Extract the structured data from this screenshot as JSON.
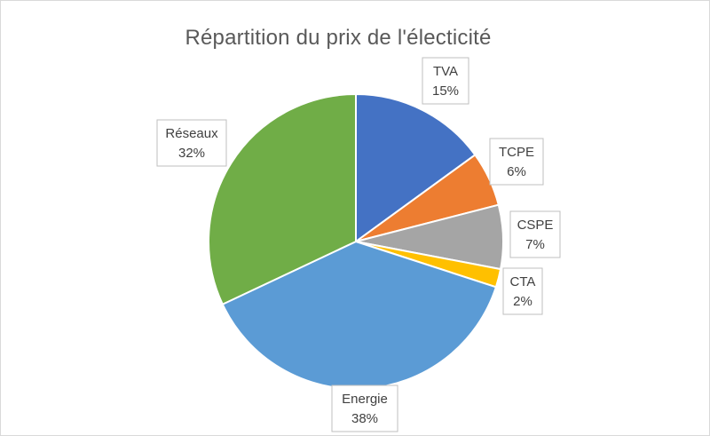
{
  "chart_data": {
    "type": "pie",
    "title": "Répartition du prix de l'électicité",
    "slices": [
      {
        "name": "TVA",
        "value": 15,
        "label": "15%",
        "color": "#4472c4"
      },
      {
        "name": "TCPE",
        "value": 6,
        "label": "6%",
        "color": "#ed7d31"
      },
      {
        "name": "CSPE",
        "value": 7,
        "label": "7%",
        "color": "#a5a5a5"
      },
      {
        "name": "CTA",
        "value": 2,
        "label": "2%",
        "color": "#ffc000"
      },
      {
        "name": "Energie",
        "value": 38,
        "label": "38%",
        "color": "#5b9bd5"
      },
      {
        "name": "Réseaux",
        "value": 32,
        "label": "32%",
        "color": "#70ad47"
      }
    ]
  }
}
